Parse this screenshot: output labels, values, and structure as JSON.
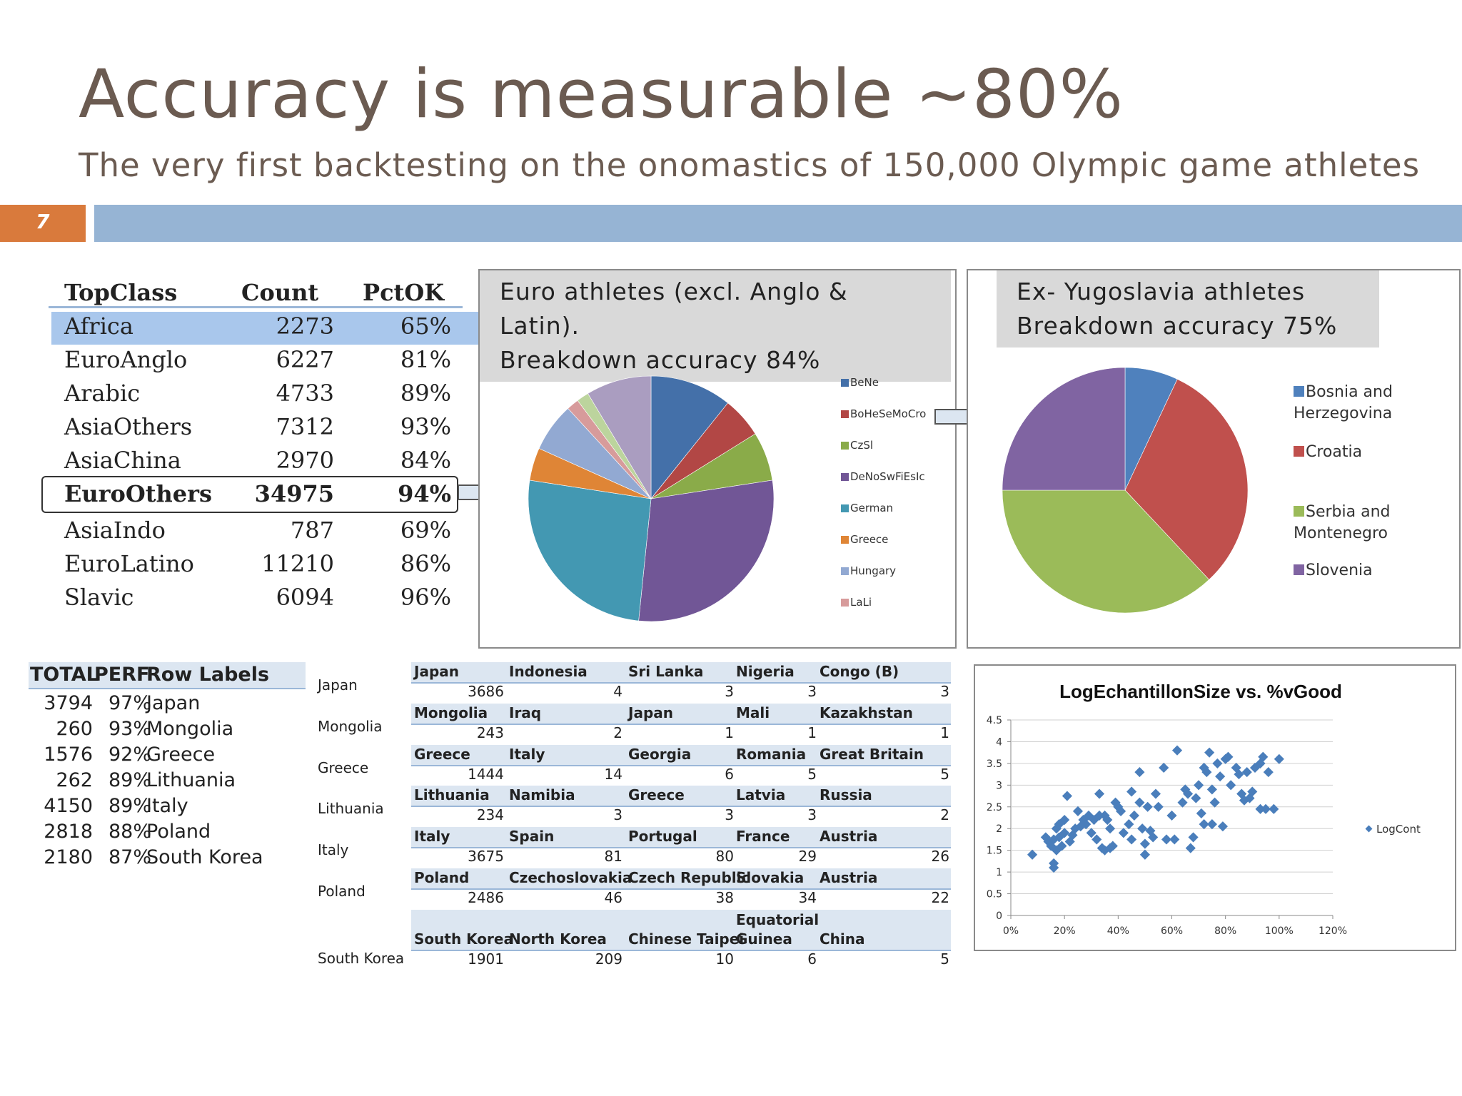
{
  "title": "Accuracy is measurable ~80%",
  "subtitle": "The very first backtesting on the onomastics of 150,000 Olympic game athletes",
  "slide_number": "7",
  "colors": {
    "title": "#6b5b51",
    "accent_orange": "#d97a3c",
    "header_bar": "#96b4d4"
  },
  "topclass_table": {
    "headers": [
      "TopClass",
      "Count",
      "PctOK"
    ],
    "rows": [
      {
        "name": "Africa",
        "count": "2273",
        "pct": "65%"
      },
      {
        "name": "EuroAnglo",
        "count": "6227",
        "pct": "81%"
      },
      {
        "name": "Arabic",
        "count": "4733",
        "pct": "89%"
      },
      {
        "name": "AsiaOthers",
        "count": "7312",
        "pct": "93%"
      },
      {
        "name": "AsiaChina",
        "count": "2970",
        "pct": "84%"
      },
      {
        "name": "EuroOthers",
        "count": "34975",
        "pct": "94%"
      },
      {
        "name": "AsiaIndo",
        "count": "787",
        "pct": "69%"
      },
      {
        "name": "EuroLatino",
        "count": "11210",
        "pct": "86%"
      },
      {
        "name": "Slavic",
        "count": "6094",
        "pct": "96%"
      }
    ]
  },
  "euro_panel": {
    "title_line1": "Euro athletes (excl. Anglo & Latin).",
    "title_line2": "Breakdown accuracy 84%"
  },
  "yugo_panel": {
    "title_line1": "Ex- Yugoslavia athletes",
    "title_line2": "Breakdown accuracy 75%"
  },
  "perf_table": {
    "headers": [
      "TOTAL",
      "PERF",
      "Row Labels"
    ],
    "rows": [
      {
        "total": "3794",
        "perf": "97%",
        "label": "Japan"
      },
      {
        "total": "260",
        "perf": "93%",
        "label": "Mongolia"
      },
      {
        "total": "1576",
        "perf": "92%",
        "label": "Greece"
      },
      {
        "total": "262",
        "perf": "89%",
        "label": "Lithuania"
      },
      {
        "total": "4150",
        "perf": "89%",
        "label": "Italy"
      },
      {
        "total": "2818",
        "perf": "88%",
        "label": "Poland"
      },
      {
        "total": "2180",
        "perf": "87%",
        "label": "South Korea"
      }
    ]
  },
  "country_table": {
    "blocks": [
      {
        "label": "Japan",
        "countries": [
          "Japan",
          "Indonesia",
          "Sri Lanka",
          "Nigeria",
          "Congo (B)"
        ],
        "values": [
          "3686",
          "4",
          "3",
          "3",
          "3"
        ]
      },
      {
        "label": "Mongolia",
        "countries": [
          "Mongolia",
          "Iraq",
          "Japan",
          "Mali",
          "Kazakhstan"
        ],
        "values": [
          "243",
          "2",
          "1",
          "1",
          "1"
        ]
      },
      {
        "label": "Greece",
        "countries": [
          "Greece",
          "Italy",
          "Georgia",
          "Romania",
          "Great Britain"
        ],
        "values": [
          "1444",
          "14",
          "6",
          "5",
          "5"
        ]
      },
      {
        "label": "Lithuania",
        "countries": [
          "Lithuania",
          "Namibia",
          "Greece",
          "Latvia",
          "Russia"
        ],
        "values": [
          "234",
          "3",
          "3",
          "3",
          "2"
        ]
      },
      {
        "label": "Italy",
        "countries": [
          "Italy",
          "Spain",
          "Portugal",
          "France",
          "Austria"
        ],
        "values": [
          "3675",
          "81",
          "80",
          "29",
          "26"
        ]
      },
      {
        "label": "Poland",
        "countries": [
          "Poland",
          "Czechoslovakia",
          "Czech Republic",
          "Slovakia",
          "Austria"
        ],
        "values": [
          "2486",
          "46",
          "38",
          "34",
          "22"
        ]
      },
      {
        "label": "South Korea",
        "countries": [
          "South Korea",
          "North Korea",
          "Chinese Taipei",
          "Equatorial Guinea",
          "China"
        ],
        "values": [
          "1901",
          "209",
          "10",
          "6",
          "5"
        ]
      }
    ]
  },
  "chart_data": [
    {
      "type": "pie",
      "labels": [
        "BeNe",
        "BoHeSeMoCro",
        "CzSl",
        "DeNoSwFiEsIc",
        "German",
        "Greece",
        "Hungary",
        "LaLi",
        "",
        ""
      ],
      "legend_labels": [
        "BeNe",
        "BoHeSeMoCro",
        "CzSl",
        "DeNoSwFiEsIc",
        "German",
        "Greece",
        "Hungary",
        "LaLi"
      ],
      "values": [
        10,
        5,
        6,
        27,
        24,
        4,
        6,
        1.5,
        1.5,
        8
      ],
      "colors": [
        "#4470a9",
        "#b24745",
        "#8aab49",
        "#715696",
        "#4398b2",
        "#df8536",
        "#92a9d2",
        "#d79b9b",
        "#bcd49d",
        "#aa9dc0"
      ],
      "legend": "right"
    },
    {
      "type": "pie",
      "labels": [
        "Bosnia and Herzegovina",
        "Croatia",
        "Serbia and Montenegro",
        "Slovenia"
      ],
      "values": [
        7,
        31,
        37,
        25
      ],
      "colors": [
        "#4f81bd",
        "#c0504d",
        "#9bbb59",
        "#8064a2"
      ],
      "legend": "right"
    },
    {
      "type": "scatter",
      "title": "LogEchantillonSize vs. %vGood",
      "series_name": "LogCont",
      "xlim": [
        0,
        1.2
      ],
      "ylim": [
        0,
        4.5
      ],
      "xticks": [
        "0%",
        "20%",
        "40%",
        "60%",
        "80%",
        "100%",
        "120%"
      ],
      "yticks": [
        "0",
        "0.5",
        "1",
        "1.5",
        "2",
        "2.5",
        "3",
        "3.5",
        "4",
        "4.5"
      ],
      "color": "#4a7ebb",
      "points": [
        [
          0.08,
          1.4
        ],
        [
          0.13,
          1.8
        ],
        [
          0.14,
          1.7
        ],
        [
          0.15,
          1.6
        ],
        [
          0.16,
          1.75
        ],
        [
          0.16,
          1.2
        ],
        [
          0.16,
          1.1
        ],
        [
          0.17,
          1.5
        ],
        [
          0.17,
          2.0
        ],
        [
          0.18,
          2.1
        ],
        [
          0.18,
          1.8
        ],
        [
          0.19,
          1.6
        ],
        [
          0.2,
          2.2
        ],
        [
          0.2,
          1.9
        ],
        [
          0.21,
          2.75
        ],
        [
          0.22,
          1.7
        ],
        [
          0.23,
          1.85
        ],
        [
          0.24,
          2.0
        ],
        [
          0.25,
          2.4
        ],
        [
          0.26,
          2.05
        ],
        [
          0.27,
          2.2
        ],
        [
          0.28,
          2.1
        ],
        [
          0.29,
          2.3
        ],
        [
          0.3,
          1.9
        ],
        [
          0.31,
          2.2
        ],
        [
          0.32,
          1.75
        ],
        [
          0.33,
          2.8
        ],
        [
          0.33,
          2.3
        ],
        [
          0.34,
          1.55
        ],
        [
          0.35,
          1.5
        ],
        [
          0.35,
          2.3
        ],
        [
          0.36,
          2.2
        ],
        [
          0.37,
          2.0
        ],
        [
          0.37,
          1.55
        ],
        [
          0.38,
          1.6
        ],
        [
          0.39,
          2.6
        ],
        [
          0.4,
          2.5
        ],
        [
          0.41,
          2.4
        ],
        [
          0.42,
          1.9
        ],
        [
          0.44,
          2.1
        ],
        [
          0.45,
          2.85
        ],
        [
          0.45,
          1.75
        ],
        [
          0.46,
          2.3
        ],
        [
          0.48,
          3.3
        ],
        [
          0.48,
          2.6
        ],
        [
          0.49,
          2.0
        ],
        [
          0.5,
          1.65
        ],
        [
          0.5,
          1.4
        ],
        [
          0.51,
          2.5
        ],
        [
          0.52,
          1.95
        ],
        [
          0.53,
          1.8
        ],
        [
          0.54,
          2.8
        ],
        [
          0.55,
          2.5
        ],
        [
          0.57,
          3.4
        ],
        [
          0.58,
          1.75
        ],
        [
          0.6,
          2.3
        ],
        [
          0.61,
          1.75
        ],
        [
          0.62,
          3.8
        ],
        [
          0.64,
          2.6
        ],
        [
          0.65,
          2.9
        ],
        [
          0.66,
          2.8
        ],
        [
          0.67,
          1.55
        ],
        [
          0.68,
          1.8
        ],
        [
          0.69,
          2.7
        ],
        [
          0.7,
          3.0
        ],
        [
          0.71,
          2.35
        ],
        [
          0.72,
          2.1
        ],
        [
          0.72,
          3.4
        ],
        [
          0.73,
          3.3
        ],
        [
          0.74,
          3.75
        ],
        [
          0.75,
          2.9
        ],
        [
          0.75,
          2.1
        ],
        [
          0.76,
          2.6
        ],
        [
          0.77,
          3.5
        ],
        [
          0.78,
          3.2
        ],
        [
          0.79,
          2.05
        ],
        [
          0.8,
          3.6
        ],
        [
          0.81,
          3.65
        ],
        [
          0.82,
          3.0
        ],
        [
          0.84,
          3.4
        ],
        [
          0.85,
          3.25
        ],
        [
          0.86,
          2.8
        ],
        [
          0.87,
          2.65
        ],
        [
          0.88,
          3.3
        ],
        [
          0.89,
          2.7
        ],
        [
          0.9,
          2.85
        ],
        [
          0.91,
          3.4
        ],
        [
          0.93,
          3.5
        ],
        [
          0.93,
          2.45
        ],
        [
          0.94,
          3.65
        ],
        [
          0.95,
          2.45
        ],
        [
          0.96,
          3.3
        ],
        [
          0.98,
          2.45
        ],
        [
          1.0,
          3.6
        ]
      ]
    }
  ]
}
